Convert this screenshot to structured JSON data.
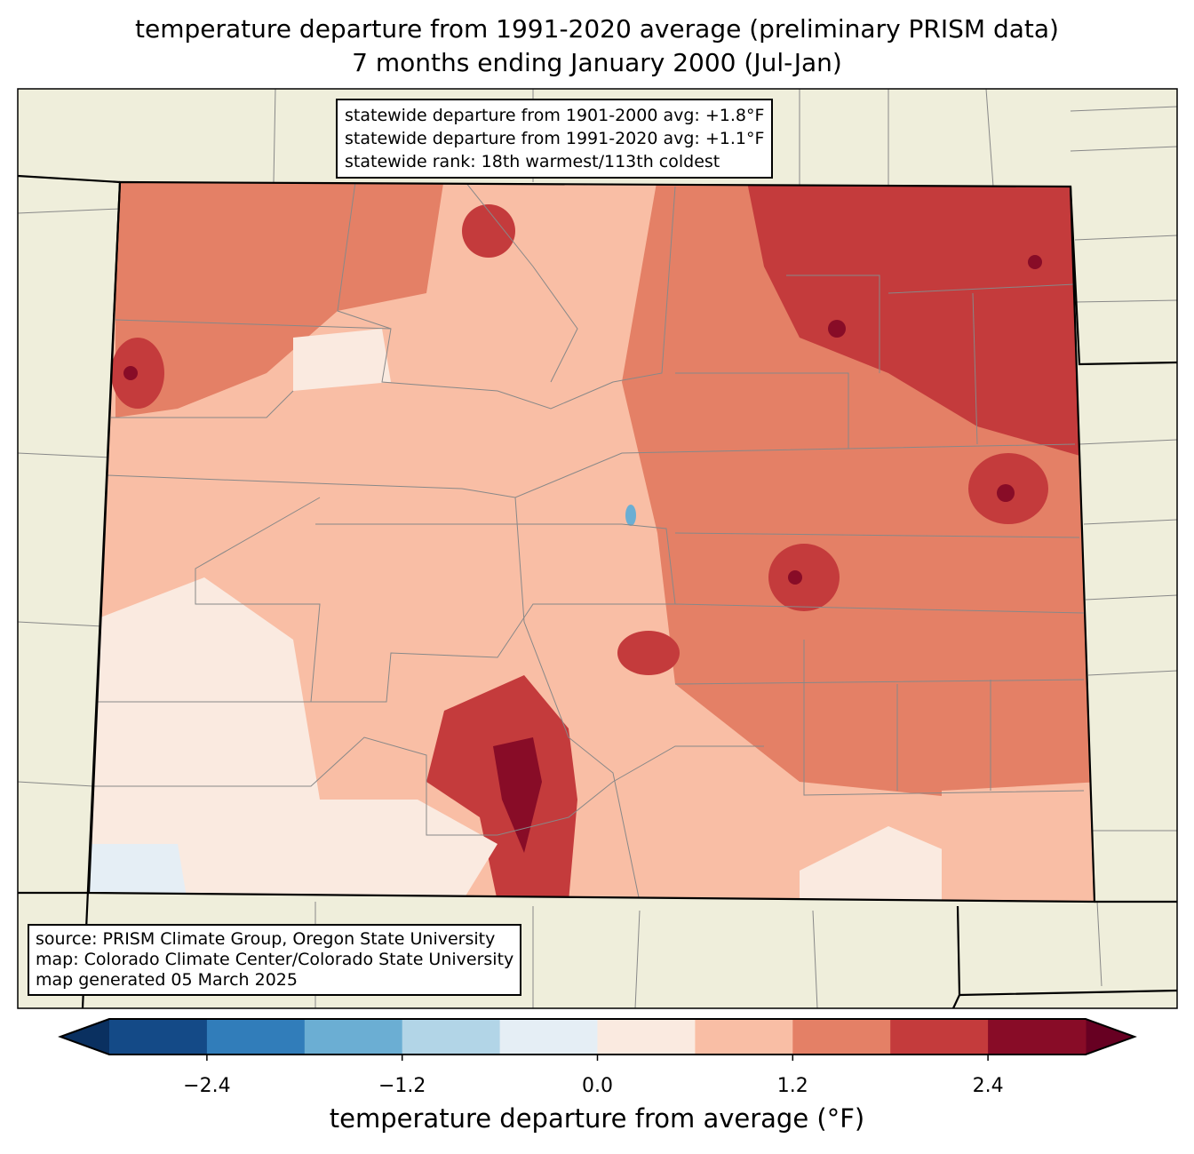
{
  "title": {
    "line1": "temperature departure from 1991-2020 average (preliminary PRISM data)",
    "line2": "7 months ending January 2000 (Jul-Jan)"
  },
  "stats_box": {
    "line1": "statewide departure from 1901-2000 avg: +1.8°F",
    "line2": "statewide departure from 1991-2020 avg: +1.1°F",
    "line3": "statewide rank: 18th warmest/113th coldest"
  },
  "source_box": {
    "line1": "source: PRISM Climate Group, Oregon State University",
    "line2": "map: Colorado Climate Center/Colorado State University",
    "line3": "map generated 05 March 2025"
  },
  "colorbar": {
    "label": "temperature departure from average (°F)",
    "levels": [
      -3.0,
      -2.4,
      -1.8,
      -1.2,
      -0.6,
      0.0,
      0.6,
      1.2,
      1.8,
      2.4,
      3.0
    ],
    "colors": [
      "#144a87",
      "#317dba",
      "#6baed3",
      "#b2d5e7",
      "#e5eef5",
      "#faeae0",
      "#f9bea5",
      "#e48066",
      "#c43b3c",
      "#880c27"
    ],
    "under_color": "#0a3060",
    "over_color": "#670022",
    "tick_labels": [
      "−2.4",
      "−1.2",
      "0.0",
      "1.2",
      "2.4"
    ],
    "tick_values": [
      -2.4,
      -1.2,
      0.0,
      1.2,
      2.4
    ]
  },
  "map_colors": {
    "land": "#efeedb",
    "state_base": "#f9bea5"
  }
}
